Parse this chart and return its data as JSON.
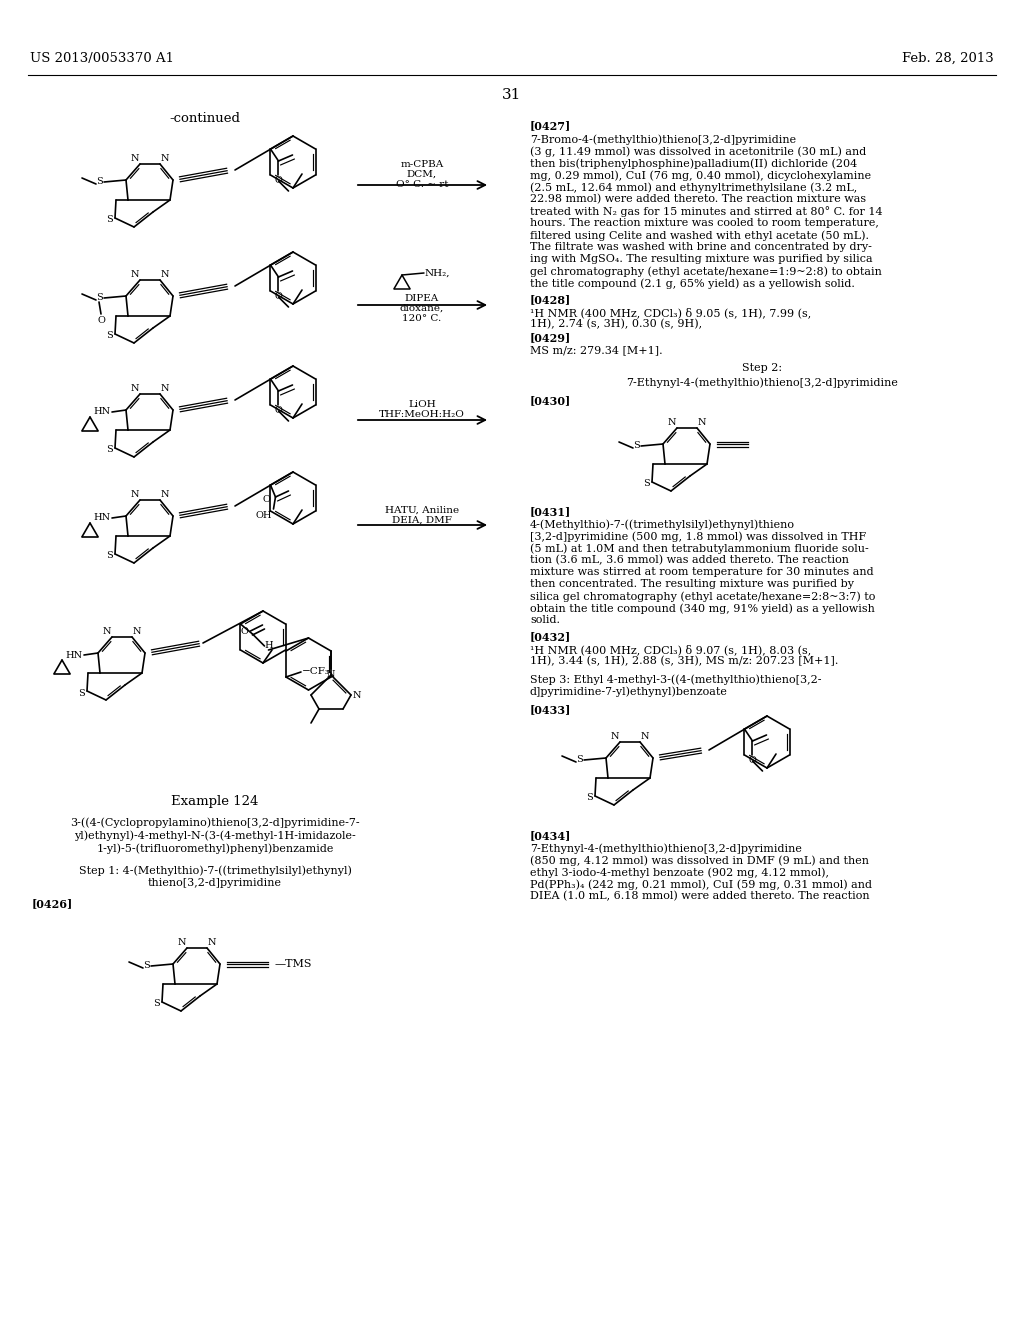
{
  "header_left": "US 2013/0053370 A1",
  "header_right": "Feb. 28, 2013",
  "page_number": "31",
  "bg": "#ffffff"
}
